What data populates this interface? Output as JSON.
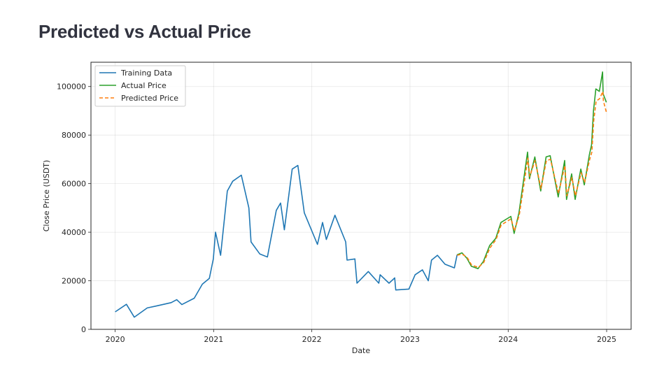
{
  "page": {
    "title": "Predicted vs Actual Price"
  },
  "chart_data": {
    "type": "line",
    "title": "",
    "xlabel": "Date",
    "ylabel": "Close Price (USDT)",
    "x_ticks": [
      "2020",
      "2021",
      "2022",
      "2023",
      "2024",
      "2025"
    ],
    "y_ticks": [
      "0",
      "20000",
      "40000",
      "60000",
      "80000",
      "100000"
    ],
    "xlim": [
      "2019-10-03",
      "2025-04-02"
    ],
    "ylim": [
      0,
      110000
    ],
    "grid": true,
    "legend": "top-left",
    "series": [
      {
        "name": "Training Data",
        "color": "#1f77b4",
        "style": "solid",
        "points": [
          [
            "2020-01-01",
            7200
          ],
          [
            "2020-02-12",
            10300
          ],
          [
            "2020-03-12",
            5000
          ],
          [
            "2020-04-29",
            8800
          ],
          [
            "2020-06-01",
            9600
          ],
          [
            "2020-07-27",
            11000
          ],
          [
            "2020-08-17",
            12200
          ],
          [
            "2020-09-05",
            10200
          ],
          [
            "2020-10-21",
            12800
          ],
          [
            "2020-11-20",
            18600
          ],
          [
            "2020-12-16",
            21000
          ],
          [
            "2020-12-31",
            29000
          ],
          [
            "2021-01-08",
            40000
          ],
          [
            "2021-01-27",
            30500
          ],
          [
            "2021-02-21",
            57000
          ],
          [
            "2021-03-13",
            61000
          ],
          [
            "2021-04-14",
            63500
          ],
          [
            "2021-05-12",
            50000
          ],
          [
            "2021-05-20",
            36000
          ],
          [
            "2021-06-22",
            31000
          ],
          [
            "2021-07-20",
            29800
          ],
          [
            "2021-08-22",
            49000
          ],
          [
            "2021-09-07",
            52000
          ],
          [
            "2021-09-21",
            41000
          ],
          [
            "2021-10-20",
            66000
          ],
          [
            "2021-11-10",
            67500
          ],
          [
            "2021-12-04",
            48000
          ],
          [
            "2022-01-22",
            35000
          ],
          [
            "2022-02-10",
            44000
          ],
          [
            "2022-02-24",
            37000
          ],
          [
            "2022-03-28",
            47000
          ],
          [
            "2022-05-07",
            36000
          ],
          [
            "2022-05-12",
            28500
          ],
          [
            "2022-06-10",
            29000
          ],
          [
            "2022-06-18",
            19000
          ],
          [
            "2022-07-30",
            23800
          ],
          [
            "2022-09-07",
            19000
          ],
          [
            "2022-09-12",
            22500
          ],
          [
            "2022-10-15",
            19000
          ],
          [
            "2022-11-05",
            21200
          ],
          [
            "2022-11-09",
            16200
          ],
          [
            "2022-12-28",
            16600
          ],
          [
            "2023-01-20",
            22500
          ],
          [
            "2023-02-16",
            24500
          ],
          [
            "2023-03-10",
            20000
          ],
          [
            "2023-03-22",
            28500
          ],
          [
            "2023-04-13",
            30500
          ],
          [
            "2023-05-11",
            26800
          ],
          [
            "2023-06-15",
            25300
          ],
          [
            "2023-06-25",
            30700
          ]
        ]
      },
      {
        "name": "Actual Price",
        "color": "#2ca02c",
        "style": "solid",
        "points": [
          [
            "2023-06-25",
            30700
          ],
          [
            "2023-07-13",
            31500
          ],
          [
            "2023-08-01",
            29200
          ],
          [
            "2023-08-17",
            26000
          ],
          [
            "2023-09-11",
            25000
          ],
          [
            "2023-10-01",
            28000
          ],
          [
            "2023-10-24",
            34500
          ],
          [
            "2023-11-16",
            37500
          ],
          [
            "2023-12-05",
            44000
          ],
          [
            "2024-01-11",
            46500
          ],
          [
            "2024-01-23",
            39500
          ],
          [
            "2024-02-10",
            48000
          ],
          [
            "2024-02-28",
            62000
          ],
          [
            "2024-03-13",
            73000
          ],
          [
            "2024-03-20",
            62000
          ],
          [
            "2024-04-09",
            71000
          ],
          [
            "2024-05-01",
            57000
          ],
          [
            "2024-05-21",
            71000
          ],
          [
            "2024-06-05",
            71500
          ],
          [
            "2024-07-05",
            54500
          ],
          [
            "2024-07-29",
            69500
          ],
          [
            "2024-08-05",
            53500
          ],
          [
            "2024-08-24",
            64000
          ],
          [
            "2024-09-06",
            53500
          ],
          [
            "2024-09-27",
            66000
          ],
          [
            "2024-10-10",
            59500
          ],
          [
            "2024-10-29",
            72000
          ],
          [
            "2024-11-06",
            76000
          ],
          [
            "2024-11-13",
            90000
          ],
          [
            "2024-11-22",
            99000
          ],
          [
            "2024-12-05",
            98000
          ],
          [
            "2024-12-17",
            106000
          ],
          [
            "2024-12-19",
            97000
          ],
          [
            "2024-12-31",
            93500
          ]
        ]
      },
      {
        "name": "Predicted Price",
        "color": "#ff7f0e",
        "style": "dashed",
        "points": [
          [
            "2023-06-25",
            30500
          ],
          [
            "2023-07-14",
            31000
          ],
          [
            "2023-08-02",
            29500
          ],
          [
            "2023-08-18",
            26500
          ],
          [
            "2023-09-12",
            25500
          ],
          [
            "2023-10-02",
            27500
          ],
          [
            "2023-10-25",
            33500
          ],
          [
            "2023-11-17",
            37000
          ],
          [
            "2023-12-06",
            43000
          ],
          [
            "2024-01-12",
            45500
          ],
          [
            "2024-01-24",
            40500
          ],
          [
            "2024-02-11",
            47000
          ],
          [
            "2024-02-29",
            60000
          ],
          [
            "2024-03-14",
            70500
          ],
          [
            "2024-03-21",
            63000
          ],
          [
            "2024-04-10",
            69500
          ],
          [
            "2024-05-02",
            58000
          ],
          [
            "2024-05-22",
            69500
          ],
          [
            "2024-06-06",
            70000
          ],
          [
            "2024-07-06",
            56000
          ],
          [
            "2024-07-30",
            67500
          ],
          [
            "2024-08-06",
            55000
          ],
          [
            "2024-08-25",
            62500
          ],
          [
            "2024-09-07",
            55000
          ],
          [
            "2024-09-28",
            64500
          ],
          [
            "2024-10-11",
            60500
          ],
          [
            "2024-10-30",
            70000
          ],
          [
            "2024-11-07",
            73000
          ],
          [
            "2024-11-14",
            86000
          ],
          [
            "2024-11-23",
            94000
          ],
          [
            "2024-12-06",
            95000
          ],
          [
            "2024-12-18",
            98000
          ],
          [
            "2024-12-20",
            94000
          ],
          [
            "2024-12-31",
            89500
          ]
        ]
      }
    ]
  }
}
